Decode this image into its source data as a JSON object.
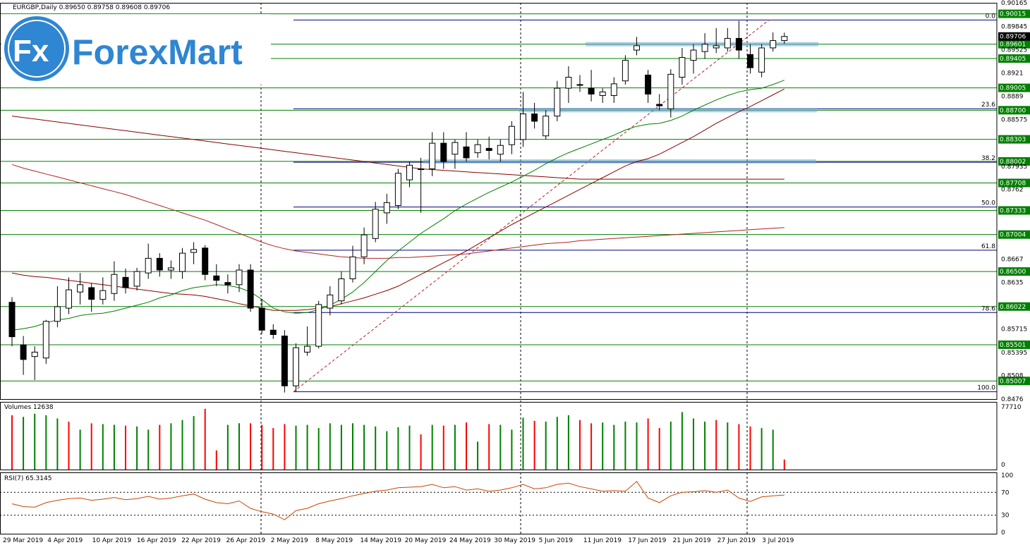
{
  "header": {
    "symbol_line": "EURGBP,Daily  0.89650 0.89758 0.89608 0.89706",
    "logo_text": "ForexMart",
    "logo_mark": "Fx"
  },
  "chart_data": [
    {
      "type": "candlestick",
      "title": "EURGBP,Daily",
      "ohlc_last": {
        "open": 0.8965,
        "high": 0.89758,
        "low": 0.89608,
        "close": 0.89706
      },
      "ylim": [
        0.8476,
        0.90165
      ],
      "price_ticks": [
        0.90165,
        0.89845,
        0.89525,
        0.8921,
        0.8889,
        0.88575,
        0.87935,
        0.8762,
        0.8667,
        0.8635,
        0.85715,
        0.85395,
        0.8508,
        0.8476
      ],
      "horizontal_levels": [
        {
          "label": "0.90015",
          "value": 0.90015
        },
        {
          "label": "0.89601",
          "value": 0.89601
        },
        {
          "label": "0.89405",
          "value": 0.89405
        },
        {
          "label": "0.89005",
          "value": 0.89005
        },
        {
          "label": "0.88700",
          "value": 0.887
        },
        {
          "label": "0.88303",
          "value": 0.88303
        },
        {
          "label": "0.88002",
          "value": 0.88002
        },
        {
          "label": "0.87708",
          "value": 0.87708
        },
        {
          "label": "0.87333",
          "value": 0.87333
        },
        {
          "label": "0.87004",
          "value": 0.87004
        },
        {
          "label": "0.86500",
          "value": 0.865
        },
        {
          "label": "0.86022",
          "value": 0.86022
        },
        {
          "label": "0.85501",
          "value": 0.85501
        },
        {
          "label": "0.85007",
          "value": 0.85007
        }
      ],
      "current_price": {
        "label": "0.89706",
        "value": 0.89706
      },
      "fibonacci": [
        {
          "label": "0.0",
          "value": 0.8993
        },
        {
          "label": "23.6",
          "value": 0.8872
        },
        {
          "label": "38.2",
          "value": 0.8799
        },
        {
          "label": "50.0",
          "value": 0.8738
        },
        {
          "label": "61.8",
          "value": 0.8679
        },
        {
          "label": "78.6",
          "value": 0.8594
        },
        {
          "label": "100.0",
          "value": 0.8486
        }
      ],
      "x_tick_labels": [
        "29 Mar 2019",
        "4 Apr 2019",
        "10 Apr 2019",
        "16 Apr 2019",
        "22 Apr 2019",
        "26 Apr 2019",
        "2 May 2019",
        "8 May 2019",
        "14 May 2019",
        "20 May 2019",
        "24 May 2019",
        "30 May 2019",
        "5 Jun 2019",
        "11 Jun 2019",
        "17 Jun 2019",
        "21 Jun 2019",
        "27 Jun 2019",
        "3 Jul 2019"
      ],
      "candles": [
        [
          0.8608,
          0.8615,
          0.8548,
          0.8561
        ],
        [
          0.855,
          0.8562,
          0.8509,
          0.853
        ],
        [
          0.8534,
          0.8548,
          0.8502,
          0.854
        ],
        [
          0.8532,
          0.8584,
          0.8524,
          0.8582
        ],
        [
          0.8582,
          0.863,
          0.8574,
          0.8602
        ],
        [
          0.86,
          0.8642,
          0.8592,
          0.8625
        ],
        [
          0.8622,
          0.8648,
          0.8605,
          0.8632
        ],
        [
          0.8628,
          0.8634,
          0.8595,
          0.8612
        ],
        [
          0.8612,
          0.8642,
          0.8605,
          0.8624
        ],
        [
          0.862,
          0.8664,
          0.861,
          0.8646
        ],
        [
          0.8642,
          0.8654,
          0.862,
          0.8628
        ],
        [
          0.863,
          0.8655,
          0.8624,
          0.865
        ],
        [
          0.8648,
          0.8688,
          0.864,
          0.8668
        ],
        [
          0.8668,
          0.8675,
          0.8643,
          0.8652
        ],
        [
          0.8652,
          0.8665,
          0.864,
          0.8655
        ],
        [
          0.865,
          0.8682,
          0.864,
          0.8675
        ],
        [
          0.8676,
          0.869,
          0.866,
          0.868
        ],
        [
          0.8682,
          0.8686,
          0.8638,
          0.8646
        ],
        [
          0.8644,
          0.866,
          0.863,
          0.8638
        ],
        [
          0.8635,
          0.8646,
          0.862,
          0.8632
        ],
        [
          0.8632,
          0.866,
          0.8622,
          0.8652
        ],
        [
          0.8652,
          0.866,
          0.8595,
          0.86
        ],
        [
          0.86,
          0.8612,
          0.8565,
          0.857
        ],
        [
          0.857,
          0.8578,
          0.8558,
          0.8564
        ],
        [
          0.8562,
          0.857,
          0.8485,
          0.8494
        ],
        [
          0.8494,
          0.8552,
          0.8486,
          0.8546
        ],
        [
          0.854,
          0.8575,
          0.8535,
          0.8548
        ],
        [
          0.8548,
          0.861,
          0.8545,
          0.8605
        ],
        [
          0.86,
          0.863,
          0.859,
          0.8618
        ],
        [
          0.861,
          0.865,
          0.8605,
          0.864
        ],
        [
          0.864,
          0.8685,
          0.8635,
          0.867
        ],
        [
          0.867,
          0.871,
          0.866,
          0.87
        ],
        [
          0.8695,
          0.8745,
          0.869,
          0.8735
        ],
        [
          0.873,
          0.8756,
          0.8715,
          0.8744
        ],
        [
          0.874,
          0.879,
          0.8735,
          0.8784
        ],
        [
          0.8775,
          0.88,
          0.8765,
          0.8795
        ],
        [
          0.879,
          0.8805,
          0.873,
          0.879
        ],
        [
          0.879,
          0.884,
          0.878,
          0.8825
        ],
        [
          0.8825,
          0.884,
          0.879,
          0.88
        ],
        [
          0.881,
          0.883,
          0.879,
          0.8826
        ],
        [
          0.882,
          0.884,
          0.88,
          0.8805
        ],
        [
          0.8812,
          0.883,
          0.8805,
          0.8823
        ],
        [
          0.8818,
          0.8834,
          0.8803,
          0.8815
        ],
        [
          0.881,
          0.883,
          0.88,
          0.8822
        ],
        [
          0.8823,
          0.8855,
          0.881,
          0.8848
        ],
        [
          0.883,
          0.8895,
          0.882,
          0.8865
        ],
        [
          0.8865,
          0.888,
          0.8845,
          0.8855
        ],
        [
          0.8835,
          0.887,
          0.883,
          0.8862
        ],
        [
          0.8862,
          0.891,
          0.8855,
          0.89
        ],
        [
          0.89,
          0.893,
          0.888,
          0.8915
        ],
        [
          0.8905,
          0.8918,
          0.8895,
          0.8904
        ],
        [
          0.89,
          0.8925,
          0.8882,
          0.8892
        ],
        [
          0.889,
          0.89,
          0.888,
          0.8895
        ],
        [
          0.889,
          0.8915,
          0.888,
          0.8906
        ],
        [
          0.891,
          0.8945,
          0.8905,
          0.8938
        ],
        [
          0.8952,
          0.897,
          0.8945,
          0.8958
        ],
        [
          0.8918,
          0.8925,
          0.888,
          0.8892
        ],
        [
          0.8878,
          0.8892,
          0.887,
          0.8876
        ],
        [
          0.8872,
          0.8926,
          0.886,
          0.8919
        ],
        [
          0.8915,
          0.8955,
          0.8905,
          0.8942
        ],
        [
          0.8938,
          0.896,
          0.892,
          0.8952
        ],
        [
          0.895,
          0.8975,
          0.894,
          0.896
        ],
        [
          0.8955,
          0.8982,
          0.8948,
          0.8958
        ],
        [
          0.8955,
          0.8982,
          0.895,
          0.8968
        ],
        [
          0.8968,
          0.8992,
          0.894,
          0.8952
        ],
        [
          0.8946,
          0.896,
          0.892,
          0.8928
        ],
        [
          0.8922,
          0.896,
          0.8915,
          0.8955
        ],
        [
          0.8955,
          0.8976,
          0.895,
          0.8965
        ],
        [
          0.8965,
          0.89758,
          0.89608,
          0.89706
        ]
      ],
      "ma_fast": [
        0.857,
        0.8572,
        0.8575,
        0.858,
        0.8584,
        0.8586,
        0.859,
        0.8592,
        0.8593,
        0.8596,
        0.86,
        0.8604,
        0.8608,
        0.8614,
        0.8618,
        0.8624,
        0.8628,
        0.863,
        0.8632,
        0.8631,
        0.8628,
        0.8622,
        0.8612,
        0.86,
        0.8595,
        0.8593,
        0.8594,
        0.8598,
        0.8604,
        0.8612,
        0.8622,
        0.8635,
        0.865,
        0.8665,
        0.8678,
        0.869,
        0.8702,
        0.8712,
        0.8722,
        0.8733,
        0.8742,
        0.875,
        0.8758,
        0.8765,
        0.8772,
        0.878,
        0.8788,
        0.8797,
        0.8805,
        0.8812,
        0.8818,
        0.8824,
        0.883,
        0.8836,
        0.8843,
        0.8848,
        0.8851,
        0.8852,
        0.8856,
        0.8862,
        0.887,
        0.8877,
        0.8884,
        0.889,
        0.8895,
        0.8898,
        0.89,
        0.8905,
        0.8911
      ],
      "ma_mid": [
        0.8648,
        0.8645,
        0.8643,
        0.8642,
        0.864,
        0.8638,
        0.8636,
        0.8634,
        0.8632,
        0.863,
        0.8628,
        0.8626,
        0.8624,
        0.8622,
        0.862,
        0.8619,
        0.8618,
        0.8616,
        0.8613,
        0.861,
        0.8606,
        0.8603,
        0.86,
        0.8597,
        0.8597,
        0.8597,
        0.8598,
        0.86,
        0.8602,
        0.8606,
        0.861,
        0.8614,
        0.8619,
        0.8624,
        0.863,
        0.8638,
        0.8646,
        0.8654,
        0.8662,
        0.867,
        0.8678,
        0.8687,
        0.8696,
        0.8705,
        0.8714,
        0.8722,
        0.873,
        0.8738,
        0.8746,
        0.8754,
        0.8762,
        0.877,
        0.8778,
        0.8786,
        0.8794,
        0.88,
        0.8804,
        0.881,
        0.8818,
        0.8826,
        0.8834,
        0.8843,
        0.8852,
        0.886,
        0.8868,
        0.8875,
        0.8883,
        0.8891,
        0.8899
      ],
      "ma_slow": [
        0.8796,
        0.8791,
        0.8787,
        0.8783,
        0.8779,
        0.8775,
        0.8771,
        0.8767,
        0.8763,
        0.8759,
        0.8755,
        0.875,
        0.8745,
        0.874,
        0.8735,
        0.873,
        0.8725,
        0.872,
        0.8714,
        0.8708,
        0.8702,
        0.8696,
        0.869,
        0.8685,
        0.8681,
        0.8678,
        0.8676,
        0.8674,
        0.8672,
        0.867,
        0.8669,
        0.8668,
        0.8668,
        0.8668,
        0.8669,
        0.8669,
        0.867,
        0.8671,
        0.8672,
        0.8673,
        0.8674,
        0.8676,
        0.8678,
        0.868,
        0.8682,
        0.8684,
        0.8686,
        0.8688,
        0.8689,
        0.869,
        0.8692,
        0.8693,
        0.8694,
        0.8695,
        0.8696,
        0.8697,
        0.8698,
        0.8699,
        0.87,
        0.8701,
        0.8702,
        0.8703,
        0.8704,
        0.8705,
        0.8706,
        0.8707,
        0.8708,
        0.8709,
        0.871
      ],
      "ma_200": [
        0.8862,
        0.886,
        0.8858,
        0.8856,
        0.8854,
        0.8852,
        0.885,
        0.8848,
        0.8846,
        0.8844,
        0.8842,
        0.884,
        0.8838,
        0.8836,
        0.8834,
        0.8832,
        0.883,
        0.8828,
        0.8826,
        0.8824,
        0.8822,
        0.882,
        0.8818,
        0.8816,
        0.8814,
        0.8812,
        0.881,
        0.8808,
        0.8806,
        0.8804,
        0.8802,
        0.88,
        0.8798,
        0.8796,
        0.8794,
        0.8792,
        0.879,
        0.8789,
        0.8788,
        0.8787,
        0.8786,
        0.8785,
        0.8784,
        0.8783,
        0.8782,
        0.8781,
        0.878,
        0.8779,
        0.8778,
        0.8777,
        0.8776,
        0.8776,
        0.8776,
        0.8776,
        0.8776,
        0.8776,
        0.8776,
        0.8776,
        0.8776,
        0.8776,
        0.8776,
        0.8776,
        0.8776,
        0.8776,
        0.8776,
        0.8776,
        0.8776,
        0.8776,
        0.8776
      ]
    },
    {
      "type": "bar",
      "title": "Volumes 12638",
      "ylim": [
        0,
        77710
      ],
      "tick_labels": [
        "77710",
        "0"
      ],
      "values": [
        68000,
        66000,
        70000,
        68000,
        64000,
        60000,
        50000,
        58000,
        57000,
        56000,
        55000,
        54000,
        50000,
        56000,
        58000,
        62000,
        67000,
        76000,
        24000,
        56000,
        58000,
        58000,
        56000,
        52000,
        57000,
        55000,
        56000,
        52000,
        58000,
        56000,
        58000,
        56000,
        54000,
        48000,
        53000,
        55000,
        44000,
        56000,
        55000,
        56000,
        59000,
        35000,
        57000,
        56000,
        50000,
        65000,
        61000,
        60000,
        66000,
        68000,
        62000,
        58000,
        59000,
        56000,
        60000,
        59000,
        64000,
        52000,
        60000,
        72000,
        64000,
        60000,
        62000,
        59000,
        57000,
        54000,
        52000,
        50000,
        12638
      ],
      "up": [
        false,
        true,
        true,
        true,
        true,
        false,
        true,
        false,
        true,
        true,
        false,
        true,
        true,
        false,
        true,
        true,
        true,
        false,
        false,
        true,
        true,
        false,
        false,
        false,
        false,
        true,
        true,
        true,
        true,
        true,
        true,
        true,
        true,
        true,
        true,
        true,
        false,
        true,
        false,
        true,
        false,
        true,
        false,
        true,
        true,
        true,
        false,
        true,
        true,
        true,
        false,
        false,
        true,
        true,
        true,
        true,
        false,
        false,
        true,
        true,
        true,
        true,
        false,
        true,
        false,
        false,
        true,
        true,
        false
      ]
    },
    {
      "type": "line",
      "title": "RSI(7) 65.3145",
      "ylim": [
        0,
        100
      ],
      "tick_labels": [
        "100",
        "70",
        "30",
        "0"
      ],
      "levels": [
        70,
        30
      ],
      "values": [
        50,
        45,
        44,
        52,
        56,
        59,
        60,
        56,
        58,
        61,
        57,
        59,
        63,
        58,
        60,
        64,
        67,
        58,
        52,
        50,
        55,
        42,
        36,
        32,
        22,
        38,
        42,
        50,
        55,
        59,
        64,
        68,
        72,
        74,
        78,
        79,
        80,
        84,
        78,
        80,
        74,
        76,
        72,
        74,
        78,
        84,
        76,
        78,
        84,
        86,
        80,
        76,
        72,
        73,
        72,
        89,
        60,
        52,
        64,
        70,
        71,
        73,
        70,
        74,
        60,
        54,
        62,
        64,
        65.3145
      ]
    }
  ],
  "colors": {
    "background": "#ffffff",
    "grid_h": "#008000",
    "fib_line": "#000080",
    "ma_fast": "#008000",
    "ma_mid": "#8b0000",
    "ma_slow": "#b22222",
    "vol_up": "#008000",
    "vol_down": "#ff0000",
    "rsi": "#cc4400",
    "logo_blue": "#2f86d2",
    "zone": "#6fa9d9",
    "price_tag": "#008000",
    "current_tag": "#000000"
  }
}
